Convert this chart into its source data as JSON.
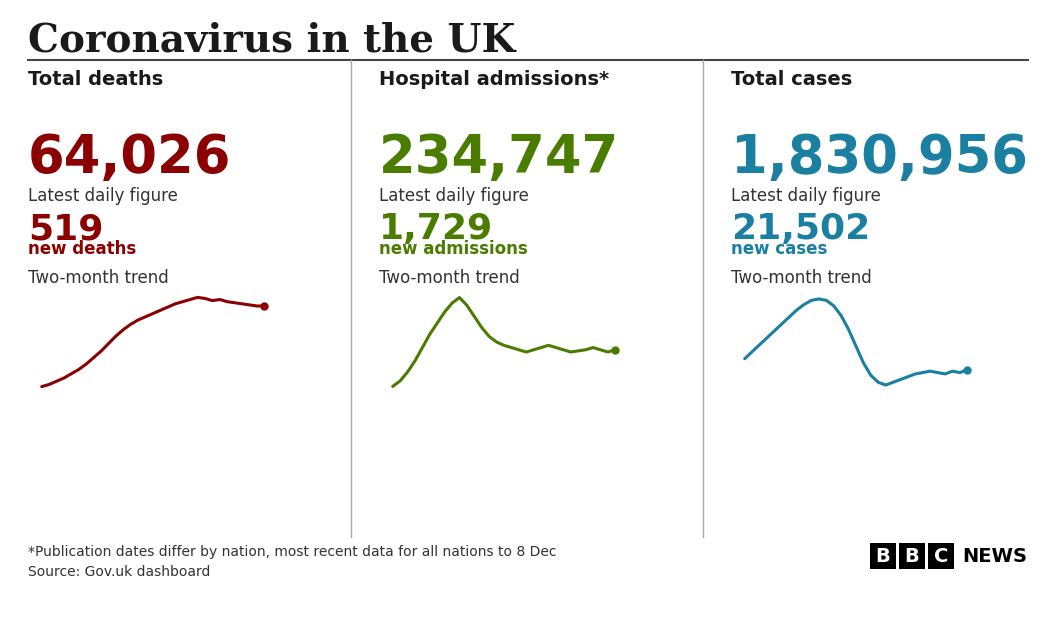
{
  "title": "Coronavirus in the UK",
  "title_color": "#1a1a1a",
  "background_color": "#ffffff",
  "divider_color": "#555555",
  "panels": [
    {
      "label": "Total deaths",
      "main_value": "64,026",
      "main_color": "#8b0000",
      "daily_label": "Latest daily figure",
      "daily_value": "519",
      "daily_sub": "new deaths",
      "trend_label": "Two-month trend",
      "trend_color": "#8b0000",
      "trend_x": [
        0,
        1,
        2,
        3,
        4,
        5,
        6,
        7,
        8,
        9,
        10,
        11,
        12,
        13,
        14,
        15,
        16,
        17,
        18,
        19,
        20,
        21,
        22,
        23,
        24,
        25,
        26,
        27,
        28,
        29,
        30
      ],
      "trend_y": [
        0.05,
        0.07,
        0.1,
        0.13,
        0.17,
        0.21,
        0.26,
        0.32,
        0.38,
        0.45,
        0.52,
        0.58,
        0.63,
        0.67,
        0.7,
        0.73,
        0.76,
        0.79,
        0.82,
        0.84,
        0.86,
        0.88,
        0.87,
        0.85,
        0.86,
        0.84,
        0.83,
        0.82,
        0.81,
        0.8,
        0.8
      ]
    },
    {
      "label": "Hospital admissions*",
      "main_value": "234,747",
      "main_color": "#4a7c00",
      "daily_label": "Latest daily figure",
      "daily_value": "1,729",
      "daily_sub": "new admissions",
      "trend_label": "Two-month trend",
      "trend_color": "#4a7c00",
      "trend_x": [
        0,
        1,
        2,
        3,
        4,
        5,
        6,
        7,
        8,
        9,
        10,
        11,
        12,
        13,
        14,
        15,
        16,
        17,
        18,
        19,
        20,
        21,
        22,
        23,
        24,
        25,
        26,
        27,
        28,
        29,
        30
      ],
      "trend_y": [
        0.15,
        0.2,
        0.28,
        0.38,
        0.5,
        0.62,
        0.72,
        0.82,
        0.9,
        0.95,
        0.88,
        0.78,
        0.68,
        0.6,
        0.55,
        0.52,
        0.5,
        0.48,
        0.46,
        0.48,
        0.5,
        0.52,
        0.5,
        0.48,
        0.46,
        0.47,
        0.48,
        0.5,
        0.48,
        0.46,
        0.48
      ]
    },
    {
      "label": "Total cases",
      "main_value": "1,830,956",
      "main_color": "#1a7fa0",
      "daily_label": "Latest daily figure",
      "daily_value": "21,502",
      "daily_sub": "new cases",
      "trend_label": "Two-month trend",
      "trend_color": "#1a7fa0",
      "trend_x": [
        0,
        1,
        2,
        3,
        4,
        5,
        6,
        7,
        8,
        9,
        10,
        11,
        12,
        13,
        14,
        15,
        16,
        17,
        18,
        19,
        20,
        21,
        22,
        23,
        24,
        25,
        26,
        27,
        28,
        29,
        30
      ],
      "trend_y": [
        0.45,
        0.5,
        0.55,
        0.6,
        0.65,
        0.7,
        0.75,
        0.8,
        0.84,
        0.87,
        0.88,
        0.87,
        0.83,
        0.76,
        0.66,
        0.54,
        0.42,
        0.33,
        0.28,
        0.26,
        0.28,
        0.3,
        0.32,
        0.34,
        0.35,
        0.36,
        0.35,
        0.34,
        0.36,
        0.35,
        0.37
      ]
    }
  ],
  "footnote1": "*Publication dates differ by nation, most recent data for all nations to 8 Dec",
  "footnote2": "Source: Gov.uk dashboard",
  "panel_label_fontsize": 14,
  "main_value_fontsize": 38,
  "daily_label_fontsize": 12,
  "daily_value_fontsize": 26,
  "daily_sub_fontsize": 12,
  "trend_label_fontsize": 12,
  "footnote_fontsize": 10,
  "title_fontsize": 28
}
